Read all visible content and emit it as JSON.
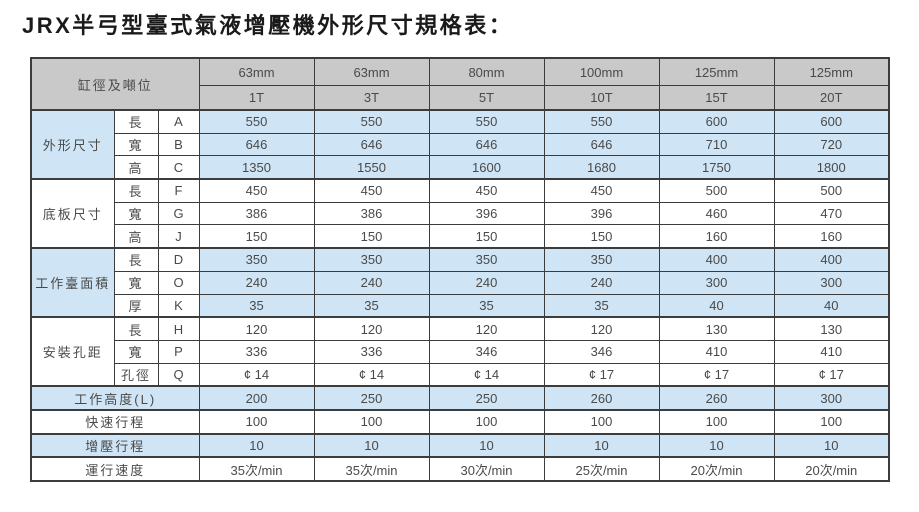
{
  "title": "JRX半弓型臺式氣液增壓機外形尺寸規格表：",
  "table": {
    "corner_label": "缸徑及噸位",
    "columns": [
      {
        "bore": "63mm",
        "tonnage": "1T"
      },
      {
        "bore": "63mm",
        "tonnage": "3T"
      },
      {
        "bore": "80mm",
        "tonnage": "5T"
      },
      {
        "bore": "100mm",
        "tonnage": "10T"
      },
      {
        "bore": "125mm",
        "tonnage": "15T"
      },
      {
        "bore": "125mm",
        "tonnage": "20T"
      }
    ],
    "groups": [
      {
        "label": "外形尺寸",
        "rows": [
          {
            "dim": "長",
            "code": "A",
            "values": [
              "550",
              "550",
              "550",
              "550",
              "600",
              "600"
            ]
          },
          {
            "dim": "寬",
            "code": "B",
            "values": [
              "646",
              "646",
              "646",
              "646",
              "710",
              "720"
            ]
          },
          {
            "dim": "高",
            "code": "C",
            "values": [
              "1350",
              "1550",
              "1600",
              "1680",
              "1750",
              "1800"
            ]
          }
        ]
      },
      {
        "label": "底板尺寸",
        "rows": [
          {
            "dim": "長",
            "code": "F",
            "values": [
              "450",
              "450",
              "450",
              "450",
              "500",
              "500"
            ]
          },
          {
            "dim": "寬",
            "code": "G",
            "values": [
              "386",
              "386",
              "396",
              "396",
              "460",
              "470"
            ]
          },
          {
            "dim": "高",
            "code": "J",
            "values": [
              "150",
              "150",
              "150",
              "150",
              "160",
              "160"
            ]
          }
        ]
      },
      {
        "label": "工作臺面積",
        "rows": [
          {
            "dim": "長",
            "code": "D",
            "values": [
              "350",
              "350",
              "350",
              "350",
              "400",
              "400"
            ]
          },
          {
            "dim": "寬",
            "code": "O",
            "values": [
              "240",
              "240",
              "240",
              "240",
              "300",
              "300"
            ]
          },
          {
            "dim": "厚",
            "code": "K",
            "values": [
              "35",
              "35",
              "35",
              "35",
              "40",
              "40"
            ]
          }
        ]
      },
      {
        "label": "安裝孔距",
        "rows": [
          {
            "dim": "長",
            "code": "H",
            "values": [
              "120",
              "120",
              "120",
              "120",
              "130",
              "130"
            ]
          },
          {
            "dim": "寬",
            "code": "P",
            "values": [
              "336",
              "336",
              "346",
              "346",
              "410",
              "410"
            ]
          },
          {
            "dim": "孔徑",
            "code": "Q",
            "values": [
              "¢ 14",
              "¢ 14",
              "¢ 14",
              "¢ 17",
              "¢ 17",
              "¢ 17"
            ]
          }
        ]
      }
    ],
    "footer_rows": [
      {
        "label": "工作高度(L)",
        "values": [
          "200",
          "250",
          "250",
          "260",
          "260",
          "300"
        ]
      },
      {
        "label": "快速行程",
        "values": [
          "100",
          "100",
          "100",
          "100",
          "100",
          "100"
        ]
      },
      {
        "label": "增壓行程",
        "values": [
          "10",
          "10",
          "10",
          "10",
          "10",
          "10"
        ]
      },
      {
        "label": "運行速度",
        "values": [
          "35次/min",
          "35次/min",
          "30次/min",
          "25次/min",
          "20次/min",
          "20次/min"
        ]
      }
    ]
  },
  "colors": {
    "header_bg": "#c9c9c9",
    "row_blue": "#cfe5f5",
    "row_white": "#ffffff",
    "border": "#3c3c3c",
    "text": "#4a4a4a",
    "title": "#1a1a1a"
  }
}
